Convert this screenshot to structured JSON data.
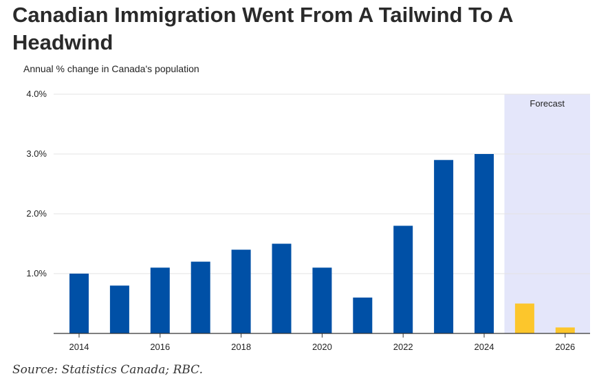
{
  "header": {
    "title": "Canadian Immigration Went From A Tailwind To A Headwind",
    "subtitle": "Annual % change in Canada's population"
  },
  "footer": {
    "source": "Source: Statistics Canada; RBC."
  },
  "colors": {
    "actual": "#0050a6",
    "forecast": "#fcc62c",
    "forecast_band": "#e4e6fa",
    "grid": "#e3e3e3",
    "axis": "#333333"
  },
  "chart_data": {
    "type": "bar",
    "title": "Canadian Immigration Went From A Tailwind To A Headwind",
    "ylabel": "Annual % change in Canada's population",
    "xlabel": "",
    "categories": [
      "2014",
      "2015",
      "2016",
      "2017",
      "2018",
      "2019",
      "2020",
      "2021",
      "2022",
      "2023",
      "2024",
      "2025",
      "2026"
    ],
    "series": [
      {
        "name": "Actual",
        "values": [
          1.0,
          0.8,
          1.1,
          1.2,
          1.4,
          1.5,
          1.1,
          0.6,
          1.8,
          2.9,
          3.0,
          null,
          null
        ]
      },
      {
        "name": "Forecast",
        "values": [
          null,
          null,
          null,
          null,
          null,
          null,
          null,
          null,
          null,
          null,
          null,
          0.5,
          0.1
        ]
      }
    ],
    "ylim": [
      0,
      4
    ],
    "yticks": [
      1,
      2,
      3,
      4
    ],
    "ytick_labels": [
      "1.0%",
      "2.0%",
      "3.0%",
      "4.0%"
    ],
    "xtick_labels": [
      "2014",
      "2016",
      "2018",
      "2020",
      "2022",
      "2024",
      "2026"
    ],
    "forecast_label": "Forecast",
    "forecast_start": "2025",
    "grid": true
  }
}
